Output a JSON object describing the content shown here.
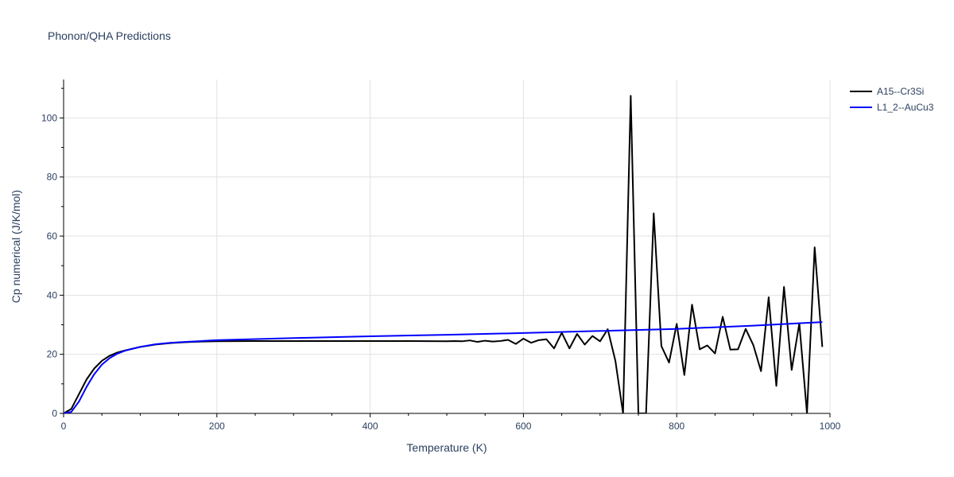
{
  "chart_data": {
    "type": "line",
    "title": "Phonon/QHA Predictions",
    "xlabel": "Temperature (K)",
    "ylabel": "Cp numerical (J/K/mol)",
    "xlim": [
      0,
      1000
    ],
    "ylim": [
      0,
      113
    ],
    "x_ticks": [
      0,
      200,
      400,
      600,
      800,
      1000
    ],
    "y_ticks": [
      0,
      20,
      40,
      60,
      80,
      100
    ],
    "grid": true,
    "legend_position": "top-right",
    "series": [
      {
        "name": "A15--Cr3Si",
        "color": "#000000",
        "x": [
          0,
          10,
          20,
          30,
          40,
          50,
          60,
          70,
          80,
          90,
          100,
          120,
          140,
          160,
          180,
          200,
          250,
          300,
          350,
          400,
          450,
          500,
          510,
          520,
          530,
          540,
          550,
          560,
          570,
          580,
          590,
          600,
          610,
          620,
          630,
          640,
          650,
          660,
          670,
          680,
          690,
          700,
          710,
          720,
          730,
          740,
          750,
          760,
          770,
          780,
          790,
          800,
          810,
          820,
          830,
          840,
          850,
          860,
          870,
          880,
          890,
          900,
          910,
          920,
          930,
          940,
          950,
          960,
          970,
          980,
          990
        ],
        "y": [
          0,
          1.5,
          6.5,
          11.5,
          15.2,
          17.8,
          19.5,
          20.6,
          21.3,
          21.9,
          22.5,
          23.3,
          23.8,
          24.1,
          24.3,
          24.4,
          24.5,
          24.5,
          24.5,
          24.5,
          24.5,
          24.4,
          24.5,
          24.4,
          24.7,
          24.2,
          24.6,
          24.3,
          24.5,
          24.9,
          23.5,
          25.3,
          23.9,
          24.8,
          25.1,
          22.0,
          27.3,
          22.0,
          26.9,
          23.3,
          26.2,
          24.4,
          28.5,
          17.8,
          0,
          107.5,
          0,
          0,
          67.7,
          22.8,
          17.2,
          30.3,
          13.0,
          36.8,
          21.7,
          23.0,
          20.3,
          32.7,
          21.6,
          21.7,
          28.6,
          23.1,
          14.3,
          39.3,
          9.3,
          42.8,
          14.7,
          30.5,
          0,
          56.2,
          22.5
        ]
      },
      {
        "name": "L1_2--AuCu3",
        "color": "#0000ff",
        "x": [
          0,
          10,
          20,
          30,
          40,
          50,
          60,
          70,
          80,
          90,
          100,
          120,
          140,
          160,
          180,
          200,
          300,
          400,
          500,
          600,
          700,
          800,
          900,
          990
        ],
        "y": [
          0,
          0.5,
          4.0,
          9.0,
          13.3,
          16.5,
          18.7,
          20.2,
          21.2,
          21.9,
          22.5,
          23.4,
          23.9,
          24.2,
          24.5,
          24.8,
          25.5,
          26.1,
          26.6,
          27.2,
          27.9,
          28.6,
          29.7,
          30.9
        ]
      }
    ]
  }
}
